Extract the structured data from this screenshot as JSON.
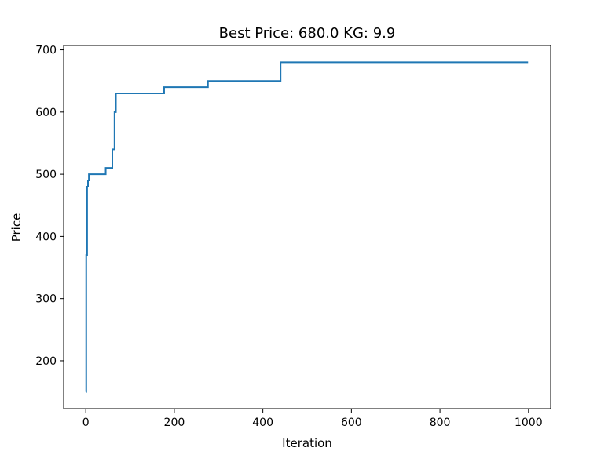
{
  "chart_data": {
    "type": "line",
    "title": "Best Price: 680.0 KG: 9.9",
    "xlabel": "Iteration",
    "ylabel": "Price",
    "xlim": [
      -50,
      1050
    ],
    "ylim": [
      123,
      707
    ],
    "xticks": [
      0,
      200,
      400,
      600,
      800,
      1000
    ],
    "yticks": [
      200,
      300,
      400,
      500,
      600,
      700
    ],
    "grid": false,
    "line_color": "#1f77b4",
    "series": [
      {
        "step": "post",
        "points": [
          [
            0,
            150
          ],
          [
            1,
            370
          ],
          [
            3,
            480
          ],
          [
            5,
            490
          ],
          [
            7,
            500
          ],
          [
            45,
            510
          ],
          [
            60,
            540
          ],
          [
            65,
            600
          ],
          [
            68,
            630
          ],
          [
            177,
            640
          ],
          [
            276,
            650
          ],
          [
            440,
            680
          ],
          [
            999,
            680
          ]
        ]
      }
    ]
  }
}
